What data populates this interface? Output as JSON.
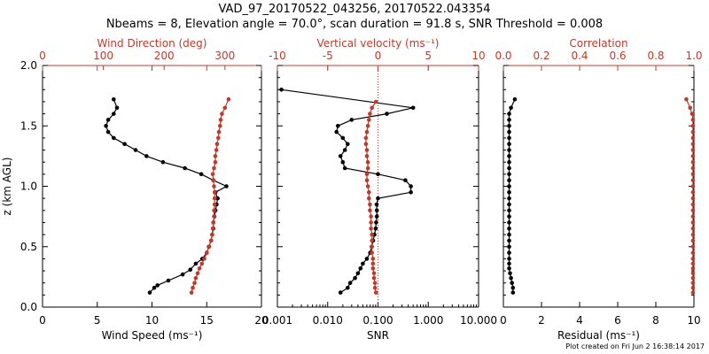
{
  "header": {
    "title": "VAD_97_20170522_043256, 20170522.043354",
    "subtitle": "Nbeams = 8, Elevation angle = 70.0°, scan duration = 91.8 s, SNR Threshold = 0.008"
  },
  "footer": "Plot created on Fri Jun  2 16:38:14 2017",
  "colors": {
    "primary": "#000000",
    "secondary": "#c0392b"
  },
  "chart_data": [
    {
      "type": "line",
      "ylabel": "z (km AGL)",
      "ylim": [
        0,
        2
      ],
      "yticks": [
        "0.0",
        "0.5",
        "1.0",
        "1.5",
        "2.0"
      ],
      "bottom_axis": {
        "label": "Wind Speed (ms⁻¹)",
        "range": [
          0,
          20
        ],
        "scale": "linear",
        "ticks": [
          0,
          5,
          10,
          15,
          20
        ]
      },
      "top_axis": {
        "label": "Wind Direction (deg)",
        "range": [
          0,
          360
        ],
        "scale": "linear",
        "ticks": [
          0,
          100,
          200,
          300
        ]
      },
      "series": [
        {
          "color": "#000000",
          "axis": "bottom",
          "z": [
            0.12,
            0.16,
            0.18,
            0.22,
            0.27,
            0.31,
            0.36,
            0.4,
            0.45,
            0.5,
            0.55,
            0.6,
            0.65,
            0.7,
            0.75,
            0.8,
            0.85,
            0.9,
            0.95,
            1.0,
            1.05,
            1.1,
            1.15,
            1.2,
            1.25,
            1.3,
            1.35,
            1.4,
            1.45,
            1.5,
            1.55,
            1.6,
            1.65,
            1.72
          ],
          "values": [
            9.8,
            10.2,
            10.5,
            11.5,
            12.8,
            13.5,
            14.0,
            14.6,
            15.0,
            15.2,
            15.4,
            15.5,
            15.6,
            15.6,
            15.7,
            15.8,
            15.9,
            16.0,
            15.8,
            16.8,
            15.6,
            14.5,
            13.0,
            11.0,
            9.5,
            8.5,
            7.5,
            6.5,
            6.0,
            5.8,
            6.0,
            6.5,
            6.8,
            6.5
          ]
        },
        {
          "color": "#c0392b",
          "axis": "top",
          "z": [
            0.12,
            0.16,
            0.2,
            0.24,
            0.28,
            0.32,
            0.36,
            0.4,
            0.45,
            0.5,
            0.55,
            0.6,
            0.65,
            0.7,
            0.75,
            0.8,
            0.85,
            0.9,
            0.95,
            1.0,
            1.05,
            1.1,
            1.15,
            1.2,
            1.25,
            1.3,
            1.35,
            1.4,
            1.45,
            1.5,
            1.55,
            1.6,
            1.65,
            1.72
          ],
          "values": [
            245,
            247,
            250,
            252,
            255,
            258,
            262,
            266,
            270,
            274,
            277,
            279,
            280,
            281,
            282,
            282,
            283,
            283,
            283,
            282,
            281,
            280,
            282,
            284,
            284,
            286,
            287,
            289,
            290,
            292,
            293,
            295,
            300,
            306
          ]
        }
      ]
    },
    {
      "type": "line",
      "ylim": [
        0,
        2
      ],
      "bottom_axis": {
        "label": "SNR",
        "range": [
          0.001,
          10
        ],
        "scale": "log",
        "ticks": [
          "0.001",
          "0.010",
          "0.100",
          "1.000",
          "10.000"
        ]
      },
      "top_axis": {
        "label": "Vertical velocity (ms⁻¹)",
        "range": [
          -10,
          10
        ],
        "scale": "linear",
        "ticks": [
          -10,
          -5,
          0,
          5,
          10
        ]
      },
      "reference_line": {
        "axis": "top",
        "value": 0,
        "style": "dotted",
        "color": "#c0392b"
      },
      "series": [
        {
          "color": "#000000",
          "axis": "bottom",
          "z": [
            0.12,
            0.16,
            0.2,
            0.24,
            0.28,
            0.32,
            0.36,
            0.4,
            0.45,
            0.5,
            0.55,
            0.6,
            0.65,
            0.7,
            0.75,
            0.8,
            0.85,
            0.9,
            0.95,
            1.0,
            1.05,
            1.1,
            1.15,
            1.2,
            1.25,
            1.3,
            1.35,
            1.4,
            1.45,
            1.5,
            1.55,
            1.6,
            1.65,
            1.8
          ],
          "values": [
            0.018,
            0.025,
            0.028,
            0.035,
            0.04,
            0.045,
            0.05,
            0.06,
            0.07,
            0.075,
            0.08,
            0.085,
            0.09,
            0.092,
            0.095,
            0.095,
            0.094,
            0.1,
            0.45,
            0.45,
            0.35,
            0.1,
            0.022,
            0.02,
            0.018,
            0.022,
            0.025,
            0.02,
            0.015,
            0.016,
            0.03,
            0.15,
            0.5,
            0.0012
          ]
        },
        {
          "color": "#c0392b",
          "axis": "top",
          "z": [
            0.12,
            0.16,
            0.2,
            0.24,
            0.28,
            0.32,
            0.36,
            0.4,
            0.45,
            0.5,
            0.55,
            0.6,
            0.65,
            0.7,
            0.75,
            0.8,
            0.85,
            0.9,
            0.95,
            1.0,
            1.05,
            1.1,
            1.15,
            1.2,
            1.25,
            1.3,
            1.35,
            1.4,
            1.45,
            1.5,
            1.55,
            1.6,
            1.65,
            1.7
          ],
          "values": [
            -0.2,
            -0.3,
            -0.3,
            -0.4,
            -0.4,
            -0.5,
            -0.5,
            -0.5,
            -0.6,
            -0.6,
            -0.6,
            -0.6,
            -0.7,
            -0.7,
            -0.7,
            -0.8,
            -0.8,
            -0.9,
            -0.9,
            -1.0,
            -1.1,
            -1.1,
            -1.0,
            -1.0,
            -1.1,
            -1.1,
            -1.2,
            -1.2,
            -1.1,
            -1.0,
            -0.9,
            -0.8,
            -0.6,
            -0.2
          ]
        }
      ]
    },
    {
      "type": "line",
      "ylim": [
        0,
        2
      ],
      "bottom_axis": {
        "label": "Residual (ms⁻¹)",
        "range": [
          0,
          10
        ],
        "scale": "linear",
        "ticks": [
          0,
          2,
          4,
          6,
          8,
          10
        ]
      },
      "top_axis": {
        "label": "Correlation",
        "range": [
          0,
          1
        ],
        "scale": "linear",
        "ticks": [
          "0.0",
          "0.2",
          "0.4",
          "0.6",
          "0.8",
          "1.0"
        ]
      },
      "series": [
        {
          "color": "#000000",
          "axis": "bottom",
          "z": [
            0.12,
            0.16,
            0.2,
            0.24,
            0.28,
            0.32,
            0.36,
            0.4,
            0.45,
            0.5,
            0.55,
            0.6,
            0.65,
            0.7,
            0.75,
            0.8,
            0.85,
            0.9,
            0.95,
            1.0,
            1.05,
            1.1,
            1.15,
            1.2,
            1.25,
            1.3,
            1.35,
            1.4,
            1.45,
            1.5,
            1.55,
            1.6,
            1.65,
            1.72
          ],
          "values": [
            0.5,
            0.5,
            0.45,
            0.4,
            0.35,
            0.3,
            0.3,
            0.3,
            0.3,
            0.3,
            0.3,
            0.3,
            0.3,
            0.3,
            0.3,
            0.3,
            0.3,
            0.3,
            0.3,
            0.3,
            0.3,
            0.3,
            0.3,
            0.3,
            0.3,
            0.3,
            0.3,
            0.3,
            0.3,
            0.3,
            0.3,
            0.3,
            0.4,
            0.6
          ]
        },
        {
          "color": "#c0392b",
          "axis": "top",
          "z": [
            0.12,
            0.16,
            0.2,
            0.24,
            0.28,
            0.32,
            0.36,
            0.4,
            0.45,
            0.5,
            0.55,
            0.6,
            0.65,
            0.7,
            0.75,
            0.8,
            0.85,
            0.9,
            0.95,
            1.0,
            1.05,
            1.1,
            1.15,
            1.2,
            1.25,
            1.3,
            1.35,
            1.4,
            1.45,
            1.5,
            1.55,
            1.6,
            1.65,
            1.72
          ],
          "values": [
            0.995,
            0.995,
            0.995,
            0.995,
            0.995,
            0.995,
            0.995,
            0.995,
            0.995,
            0.995,
            0.995,
            0.995,
            0.995,
            0.995,
            0.995,
            0.995,
            0.995,
            0.995,
            0.995,
            0.995,
            0.995,
            0.995,
            0.995,
            0.995,
            0.995,
            0.995,
            0.995,
            0.995,
            0.995,
            0.995,
            0.995,
            0.99,
            0.98,
            0.96
          ]
        }
      ]
    }
  ]
}
